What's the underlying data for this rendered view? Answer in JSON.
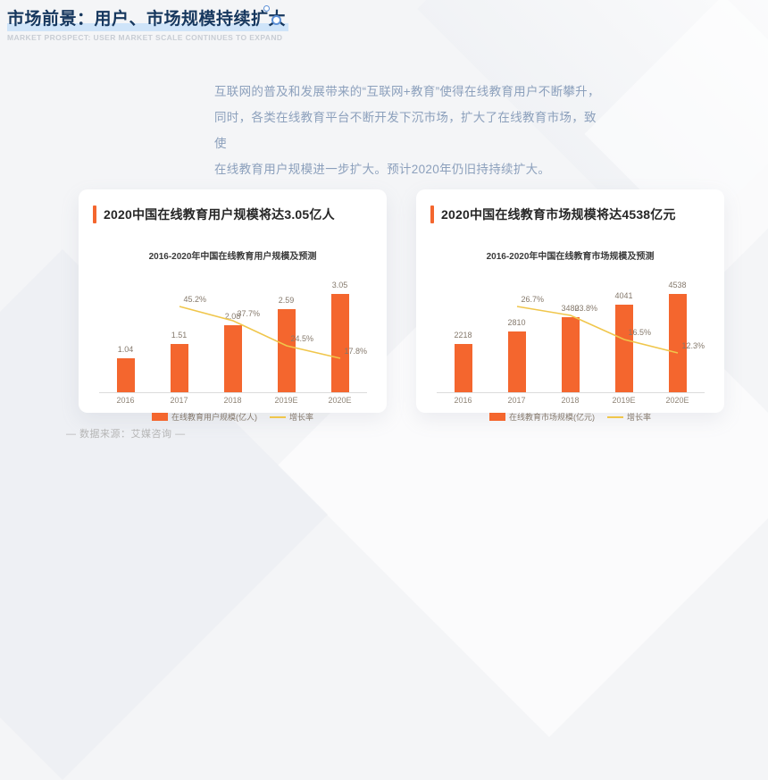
{
  "page": {
    "title": "市场前景：用户、市场规模持续扩大",
    "subtitle": "MARKET PROSPECT: USER MARKET SCALE CONTINUES TO EXPAND",
    "intro_lines": [
      "互联网的普及和发展带来的“互联网+教育”使得在线教育用户不断攀升，",
      "同时，各类在线教育平台不断开发下沉市场，扩大了在线教育市场，致使",
      "在线教育用户规模进一步扩大。预计2020年仍旧持持续扩大。"
    ],
    "source": "— 数据来源：艾媒咨询 —"
  },
  "cards": [
    {
      "title": "2020中国在线教育用户规模将达3.05亿人"
    },
    {
      "title": "2020中国在线教育市场规模将达4538亿元"
    }
  ],
  "colors": {
    "bar_orange": "#f4662e",
    "line_yellow": "#f0c64b",
    "title_navy": "#16375e",
    "title_highlight": "#cfe4f9"
  },
  "chart_data": [
    {
      "type": "bar",
      "title": "2016-2020年中国在线教育用户规模及预测",
      "categories": [
        "2016",
        "2017",
        "2018",
        "2019E",
        "2020E"
      ],
      "series": [
        {
          "name": "在线教育用户规模(亿人)",
          "type": "bar",
          "values": [
            1.04,
            1.51,
            2.08,
            2.59,
            3.05
          ]
        },
        {
          "name": "增长率",
          "type": "line",
          "unit": "%",
          "values": [
            null,
            45.2,
            37.7,
            24.5,
            17.8
          ]
        }
      ],
      "legend": [
        "在线教育用户规模(亿人)",
        "增长率"
      ],
      "legend_position": "bottom",
      "grid": false,
      "ylim": [
        0,
        3.05
      ]
    },
    {
      "type": "bar",
      "title": "2016-2020年中国在线教育市场规模及预测",
      "categories": [
        "2016",
        "2017",
        "2018",
        "2019E",
        "2020E"
      ],
      "series": [
        {
          "name": "在线教育市场规模(亿元)",
          "type": "bar",
          "values": [
            2218,
            2810,
            3480,
            4041,
            4538
          ]
        },
        {
          "name": "增长率",
          "type": "line",
          "unit": "%",
          "values": [
            null,
            26.7,
            23.8,
            16.5,
            12.3
          ]
        }
      ],
      "legend": [
        "在线教育市场规模(亿元)",
        "增长率"
      ],
      "legend_position": "bottom",
      "grid": false,
      "ylim": [
        0,
        4538
      ]
    }
  ]
}
